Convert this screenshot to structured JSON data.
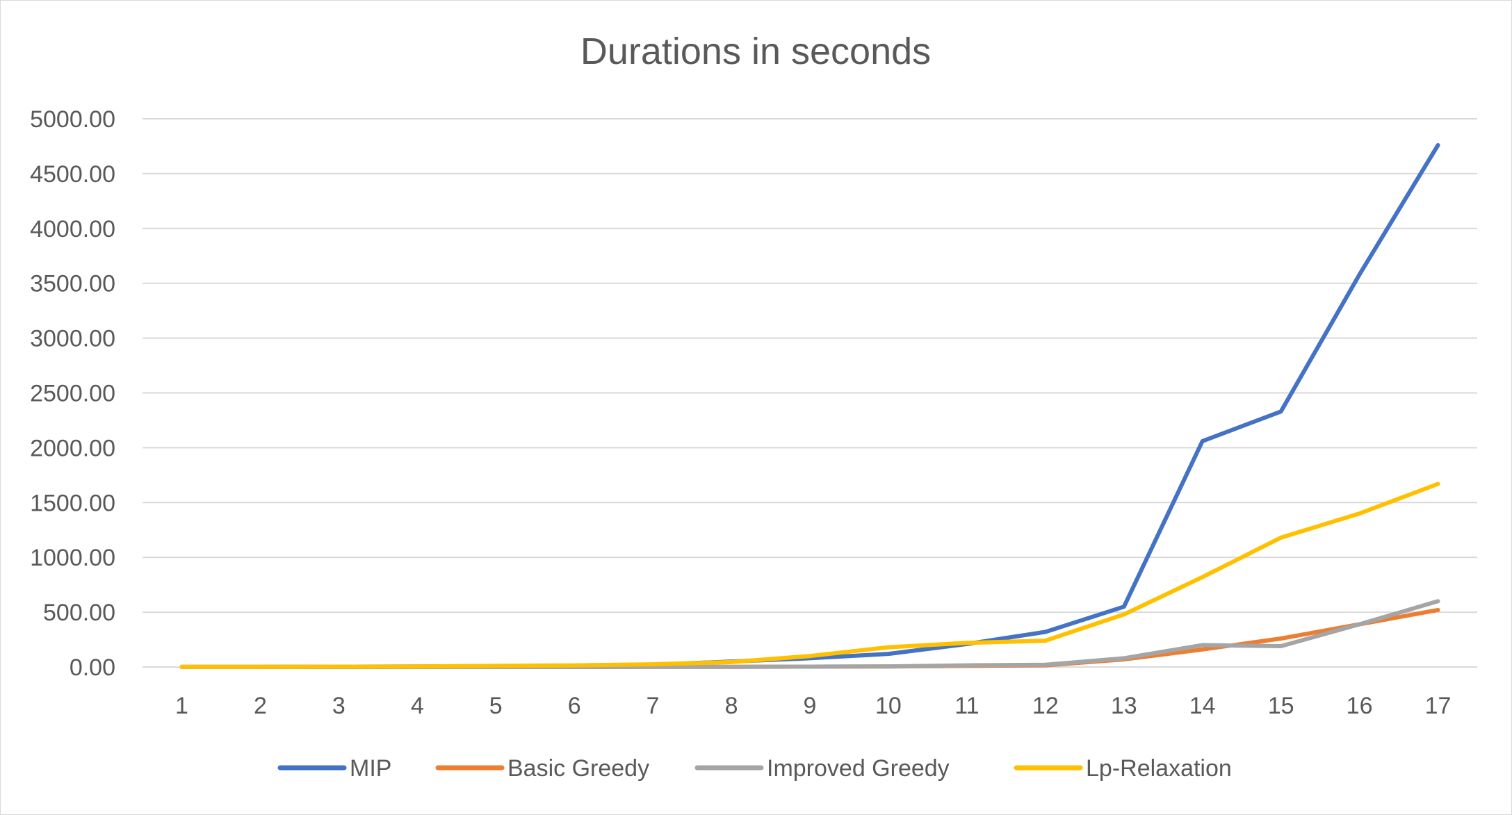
{
  "chart_data": {
    "type": "line",
    "title": "Durations in seconds",
    "xlabel": "",
    "ylabel": "",
    "categories": [
      "1",
      "2",
      "3",
      "4",
      "5",
      "6",
      "7",
      "8",
      "9",
      "10",
      "11",
      "12",
      "13",
      "14",
      "15",
      "16",
      "17"
    ],
    "y_ticks": [
      "0.00",
      "500.00",
      "1000.00",
      "1500.00",
      "2000.00",
      "2500.00",
      "3000.00",
      "3500.00",
      "4000.00",
      "4500.00",
      "5000.00"
    ],
    "ylim": [
      0,
      5000
    ],
    "grid": true,
    "legend_position": "bottom",
    "series": [
      {
        "name": "MIP",
        "color": "#4472C4",
        "values": [
          1,
          2,
          3,
          5,
          8,
          12,
          20,
          50,
          80,
          120,
          210,
          320,
          550,
          2060,
          2330,
          3580,
          4760
        ]
      },
      {
        "name": "Basic Greedy",
        "color": "#ED7D31",
        "values": [
          0,
          0,
          0,
          0,
          0,
          0,
          1,
          2,
          3,
          5,
          10,
          15,
          70,
          160,
          260,
          390,
          520
        ]
      },
      {
        "name": "Improved Greedy",
        "color": "#A5A5A5",
        "values": [
          0,
          0,
          0,
          0,
          0,
          0,
          1,
          2,
          3,
          6,
          15,
          20,
          80,
          200,
          190,
          390,
          600
        ]
      },
      {
        "name": "Lp-Relaxation",
        "color": "#FFC000",
        "values": [
          1,
          2,
          3,
          5,
          10,
          15,
          25,
          45,
          100,
          180,
          220,
          240,
          480,
          820,
          1180,
          1400,
          1670
        ]
      }
    ]
  }
}
